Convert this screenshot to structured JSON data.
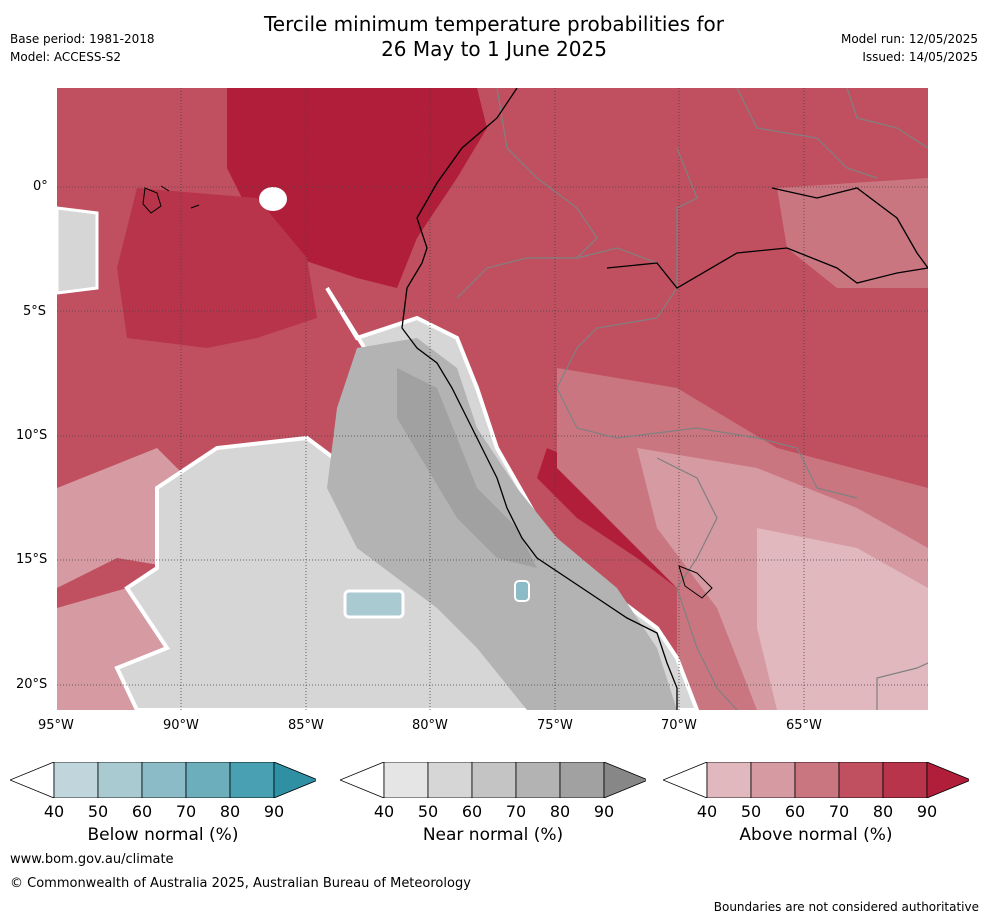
{
  "header": {
    "title_line1": "Tercile minimum temperature probabilities for",
    "title_line2": "26 May to 1 June 2025",
    "base_period": "Base period: 1981-2018",
    "model": "Model: ACCESS-S2",
    "model_run": "Model run: 12/05/2025",
    "issued": "Issued: 14/05/2025"
  },
  "axes": {
    "lat_labels": [
      "0°",
      "5°S",
      "10°S",
      "15°S",
      "20°S"
    ],
    "lon_labels": [
      "95°W",
      "90°W",
      "85°W",
      "80°W",
      "75°W",
      "70°W",
      "65°W"
    ]
  },
  "legends": [
    {
      "label": "Below normal (%)",
      "ticks": [
        "40",
        "50",
        "60",
        "70",
        "80",
        "90"
      ],
      "colors": [
        "#ffffff",
        "#c0d6dc",
        "#a9cad1",
        "#8bbbc7",
        "#6caebb",
        "#48a0b2",
        "#2f8fa3"
      ]
    },
    {
      "label": "Near normal (%)",
      "ticks": [
        "40",
        "50",
        "60",
        "70",
        "80",
        "90"
      ],
      "colors": [
        "#ffffff",
        "#e5e5e5",
        "#d6d6d6",
        "#c4c4c4",
        "#b3b3b3",
        "#a1a1a1",
        "#878787"
      ]
    },
    {
      "label": "Above normal (%)",
      "ticks": [
        "40",
        "50",
        "60",
        "70",
        "80",
        "90"
      ],
      "colors": [
        "#ffffff",
        "#e0b8be",
        "#d69aa3",
        "#ca7681",
        "#c05060",
        "#b8344a",
        "#b01e3a"
      ]
    }
  ],
  "footer": {
    "website": "www.bom.gov.au/climate",
    "copyright": "© Commonwealth of Australia 2025, Australian Bureau of Meteorology",
    "disclaimer": "Boundaries are not considered authoritative"
  }
}
